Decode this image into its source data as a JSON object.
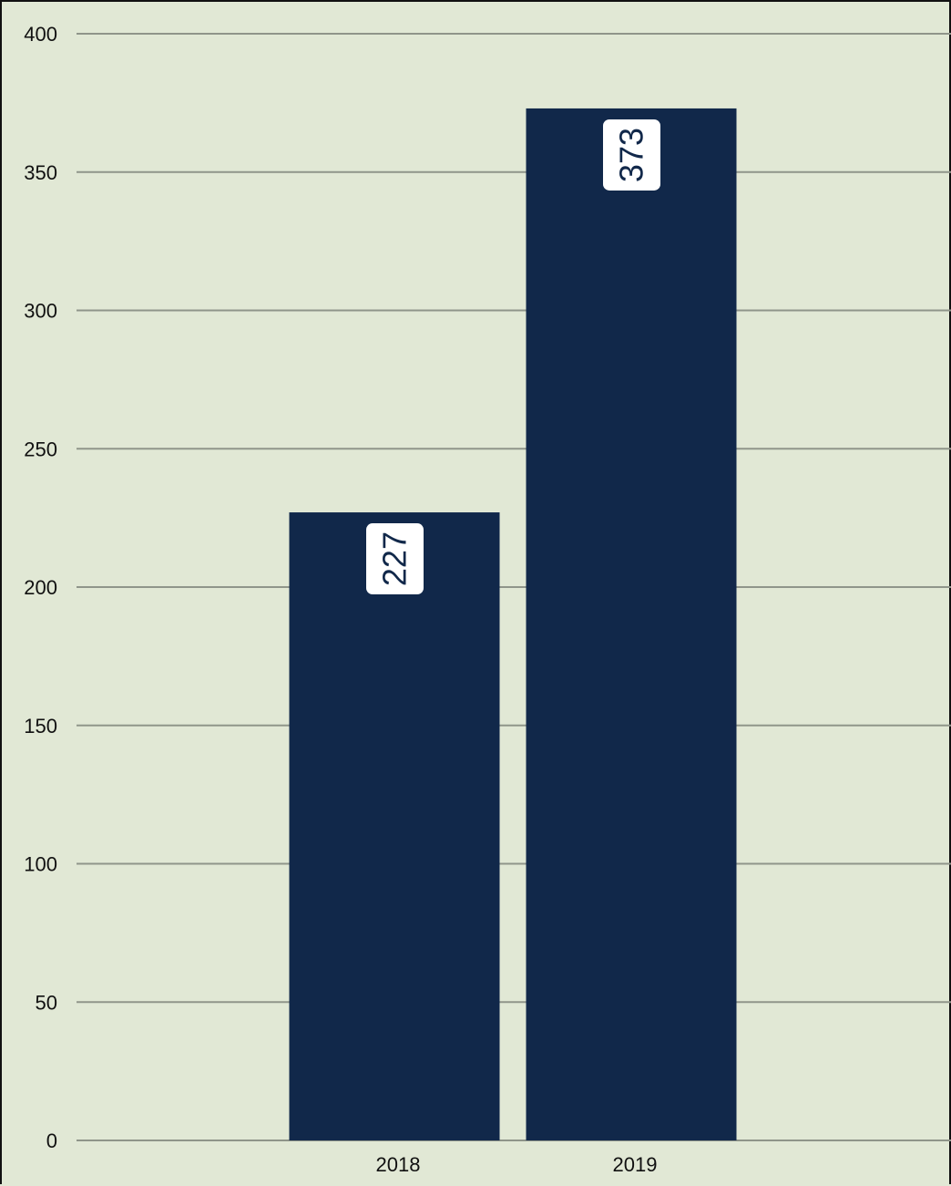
{
  "chart_data": {
    "type": "bar",
    "categories": [
      "2018",
      "2019"
    ],
    "values": [
      227,
      373
    ],
    "data_labels": [
      "227",
      "373"
    ],
    "title": "",
    "xlabel": "",
    "ylabel": "",
    "ylim": [
      0,
      400
    ],
    "yticks": [
      0,
      50,
      100,
      150,
      200,
      250,
      300,
      350,
      400
    ],
    "ytick_labels": [
      "0",
      "50",
      "100",
      "150",
      "200",
      "250",
      "300",
      "350",
      "400"
    ],
    "grid": true,
    "legend": "none",
    "data_label_orientation": "vertical",
    "colors": {
      "background": "#e1e8d5",
      "bar": "#11284a",
      "grid": "#8f958a",
      "data_label_box": "#ffffff",
      "text": "#111111"
    }
  }
}
